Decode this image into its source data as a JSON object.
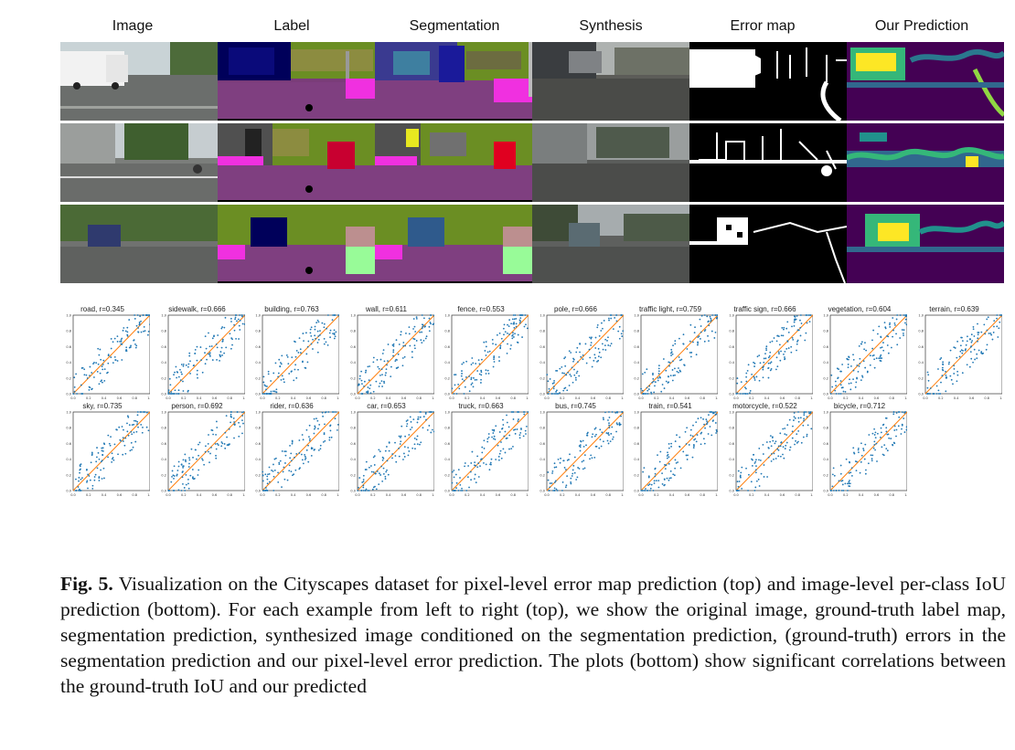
{
  "columns": [
    "Image",
    "Label",
    "Segmentation",
    "Synthesis",
    "Error map",
    "Our Prediction"
  ],
  "plots": [
    {
      "title": "road, r=0.345"
    },
    {
      "title": "sidewalk, r=0.666"
    },
    {
      "title": "building, r=0.763"
    },
    {
      "title": "wall, r=0.611"
    },
    {
      "title": "fence, r=0.553"
    },
    {
      "title": "pole, r=0.666"
    },
    {
      "title": "traffic light, r=0.759"
    },
    {
      "title": "traffic sign, r=0.666"
    },
    {
      "title": "vegetation, r=0.604"
    },
    {
      "title": "terrain, r=0.639"
    },
    {
      "title": "sky, r=0.735"
    },
    {
      "title": "person, r=0.692"
    },
    {
      "title": "rider, r=0.636"
    },
    {
      "title": "car, r=0.653"
    },
    {
      "title": "truck, r=0.663"
    },
    {
      "title": "bus, r=0.745"
    },
    {
      "title": "train, r=0.541"
    },
    {
      "title": "motorcycle, r=0.522"
    },
    {
      "title": "bicycle, r=0.712"
    }
  ],
  "axis_ticks": [
    "0.0",
    "0.2",
    "0.4",
    "0.6",
    "0.8",
    "1.0"
  ],
  "colors": {
    "points": "#1f77b4",
    "diagonal": "#ff7f0e"
  },
  "caption": {
    "label": "Fig. 5.",
    "text": "Visualization on the Cityscapes dataset for pixel-level error map prediction (top) and image-level per-class IoU prediction (bottom). For each example from left to right (top), we show the original image, ground-truth label map, segmentation prediction, synthesized image conditioned on the segmentation prediction, (ground-truth) errors in the segmentation prediction and our pixel-level error prediction. The plots (bottom) show significant correlations between the ground-truth IoU and our predicted"
  }
}
